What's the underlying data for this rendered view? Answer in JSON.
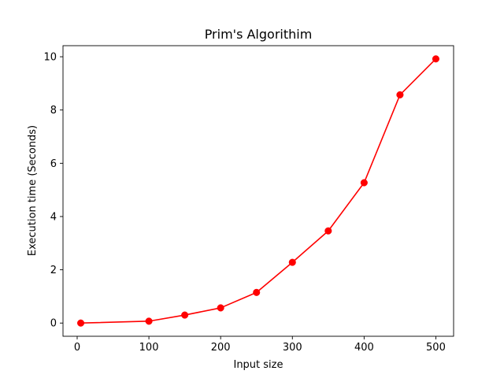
{
  "chart_data": {
    "type": "line",
    "title": "Prim's Algorithim",
    "xlabel": "Input size",
    "ylabel": "Execution time (Seconds)",
    "x": [
      5,
      100,
      150,
      200,
      250,
      300,
      350,
      400,
      450,
      500
    ],
    "series": [
      {
        "name": "Execution time",
        "values": [
          0.0,
          0.07,
          0.3,
          0.57,
          1.15,
          2.28,
          3.46,
          5.27,
          8.57,
          9.92
        ],
        "color": "#ff0000",
        "marker": "circle"
      }
    ],
    "xlim": [
      -19.75,
      524.75
    ],
    "ylim": [
      -0.496,
      10.416
    ],
    "xticks": [
      0,
      100,
      200,
      300,
      400,
      500
    ],
    "yticks": [
      0,
      2,
      4,
      6,
      8,
      10
    ],
    "xtick_labels": [
      "0",
      "100",
      "200",
      "300",
      "400",
      "500"
    ],
    "ytick_labels": [
      "0",
      "2",
      "4",
      "6",
      "8",
      "10"
    ],
    "grid": false,
    "legend": "none"
  }
}
